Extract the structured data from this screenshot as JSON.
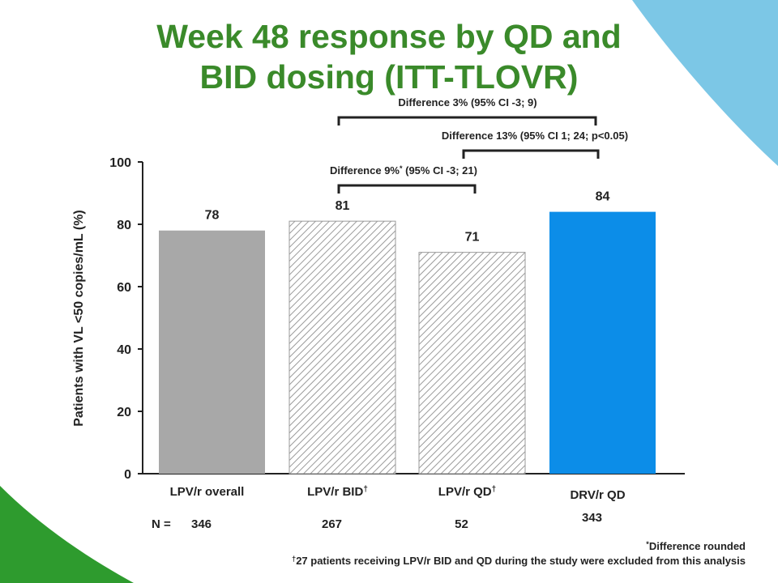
{
  "title_line1": "Week 48 response by QD and",
  "title_line2": "BID dosing (ITT-TLOVR)",
  "colors": {
    "title": "#3a8a2a",
    "text": "#222222",
    "gray": "#a8a8a8",
    "hatch": "#9a9a9a",
    "blue": "#0c8de8",
    "corner_green": "#2e9b2e",
    "corner_blue": "#7cc7e6"
  },
  "chart_data": {
    "type": "bar",
    "categories": [
      "LPV/r overall",
      "LPV/r BID",
      "LPV/r QD",
      "DRV/r QD"
    ],
    "category_markers": [
      "",
      "†",
      "†",
      ""
    ],
    "values": [
      78,
      81,
      71,
      84
    ],
    "value_labels": [
      "78",
      "81",
      "71",
      "84"
    ],
    "bar_styles": [
      "solid-gray",
      "hatched",
      "hatched",
      "solid-blue"
    ],
    "n_label": "N =",
    "n_values": [
      "346",
      "267",
      "52",
      "343"
    ],
    "ylabel": "Patients with VL <50 copies/mL (%)",
    "xlabel": "",
    "ylim": [
      0,
      100
    ],
    "yticks": [
      0,
      20,
      40,
      60,
      80,
      100
    ],
    "comparisons": [
      {
        "from": 1,
        "to": 2,
        "label": "Difference 9%",
        "marker": "*",
        "label_rest": " (95% CI -3; 21)"
      },
      {
        "from": 2,
        "to": 3,
        "label": "Difference 13% (95% CI 1; 24; p<0.05)",
        "marker": "",
        "label_rest": ""
      },
      {
        "from": 1,
        "to": 3,
        "label": "Difference 3% (95% CI -3; 9)",
        "marker": "",
        "label_rest": ""
      }
    ]
  },
  "footnotes": {
    "note1_marker": "*",
    "note1": "Difference rounded",
    "note2_marker": "†",
    "note2": "27 patients receiving LPV/r BID and QD during the study were excluded from this analysis"
  }
}
